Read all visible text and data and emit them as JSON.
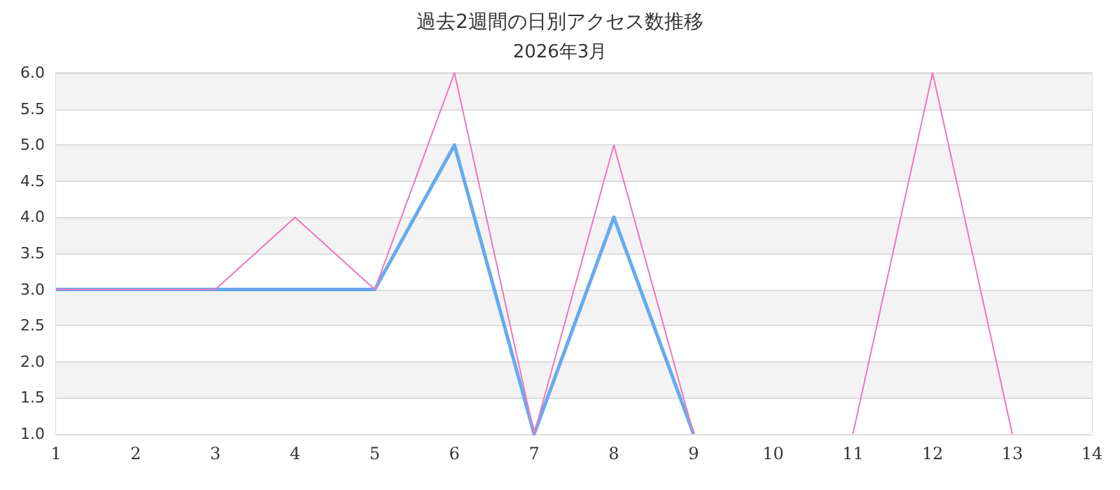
{
  "chart_data": {
    "type": "line",
    "title": "過去2週間の日別アクセス数推移",
    "subtitle": "2026年3月",
    "x": [
      1,
      2,
      3,
      4,
      5,
      6,
      7,
      8,
      9,
      10,
      11,
      12,
      13
    ],
    "series": [
      {
        "color": "#66aaee",
        "values": [
          3,
          3,
          3,
          3,
          3,
          5,
          1,
          4,
          1,
          null,
          null,
          null,
          null
        ]
      },
      {
        "color": "#ee77bb",
        "values": [
          3,
          3,
          3,
          4,
          3,
          6,
          1,
          5,
          1,
          null,
          1,
          6,
          1
        ]
      }
    ],
    "xlim": [
      1,
      14
    ],
    "xticks": [
      1,
      2,
      3,
      4,
      5,
      6,
      7,
      8,
      9,
      10,
      11,
      12,
      13,
      14
    ],
    "ylim": [
      1,
      6
    ],
    "yticks": [
      {
        "value": 1,
        "label": "1.0"
      },
      {
        "value": 1.5,
        "label": "1.5"
      },
      {
        "value": 2,
        "label": "2.0"
      },
      {
        "value": 2.5,
        "label": "2.5"
      },
      {
        "value": 3,
        "label": "3.0"
      },
      {
        "value": 3.5,
        "label": "3.5"
      },
      {
        "value": 4,
        "label": "4.0"
      },
      {
        "value": 4.5,
        "label": "4.5"
      },
      {
        "value": 5,
        "label": "5.0"
      },
      {
        "value": 5.5,
        "label": "5.5"
      },
      {
        "value": 6,
        "label": "6.0"
      }
    ],
    "grid": "y",
    "marker": "none"
  }
}
